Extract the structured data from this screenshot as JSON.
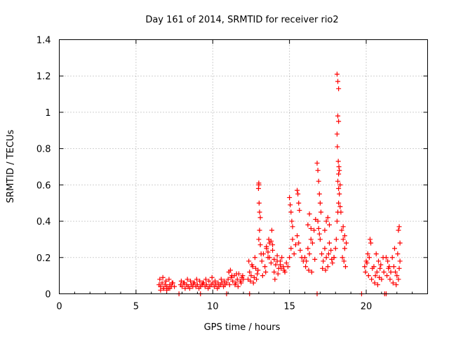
{
  "chart_data": {
    "type": "scatter",
    "title": "Day 161 of 2014, SRMTID for receiver rio2",
    "xlabel": "GPS time / hours",
    "ylabel": "SRMTID / TECUs",
    "xlim": [
      0,
      24
    ],
    "ylim": [
      0,
      1.4
    ],
    "xticks": [
      0,
      5,
      10,
      15,
      20
    ],
    "yticks": [
      0,
      0.2,
      0.4,
      0.6,
      0.8,
      1,
      1.2,
      1.4
    ],
    "xtick_labels": [
      "0",
      "5",
      "10",
      "15",
      "20"
    ],
    "ytick_labels": [
      "0",
      "0.2",
      "0.4",
      "0.6",
      "0.8",
      "1",
      "1.2",
      "1.4"
    ],
    "grid": true,
    "marker": "+",
    "series": [
      {
        "name": "SRMTID",
        "color": "#ff0000",
        "x": [
          6.5,
          6.6,
          6.7,
          6.8,
          6.9,
          7.0,
          7.1,
          7.2,
          7.3,
          7.4,
          7.5,
          6.55,
          6.75,
          6.95,
          7.15,
          7.35,
          6.6,
          6.8,
          7.0,
          7.2,
          7.9,
          8.0,
          8.1,
          8.2,
          8.3,
          8.4,
          8.5,
          8.6,
          8.7,
          8.8,
          8.9,
          9.0,
          9.1,
          9.2,
          9.3,
          9.4,
          9.5,
          9.6,
          9.7,
          9.8,
          9.9,
          10.0,
          10.1,
          10.2,
          10.3,
          10.4,
          10.5,
          10.6,
          10.7,
          10.8,
          7.95,
          8.15,
          8.35,
          8.55,
          8.75,
          8.95,
          9.15,
          9.35,
          9.55,
          9.75,
          9.95,
          10.15,
          10.35,
          10.55,
          10.75,
          10.9,
          11.0,
          11.1,
          11.2,
          11.3,
          11.4,
          11.5,
          11.6,
          11.7,
          11.8,
          11.9,
          12.0,
          11.05,
          11.25,
          11.45,
          11.65,
          11.85,
          11.15,
          11.55,
          11.95,
          12.3,
          12.4,
          12.5,
          12.6,
          12.7,
          12.8,
          12.9,
          12.35,
          12.55,
          12.75,
          12.95,
          12.45,
          12.65,
          12.85,
          13.0,
          13.0,
          12.98,
          13.02,
          13.05,
          13.1,
          13.05,
          13.0,
          13.1,
          13.15,
          13.2,
          13.3,
          13.4,
          13.5,
          13.6,
          13.7,
          13.8,
          13.9,
          14.0,
          14.1,
          14.2,
          14.3,
          14.4,
          14.5,
          14.6,
          14.7,
          14.8,
          13.25,
          13.45,
          13.65,
          13.85,
          14.05,
          14.25,
          14.45,
          14.65,
          13.5,
          13.6,
          13.7,
          13.8,
          13.9,
          14.0,
          14.2,
          14.4,
          14.9,
          15.0,
          15.1,
          15.2,
          15.3,
          15.4,
          15.5,
          15.6,
          15.7,
          15.8,
          15.9,
          15.0,
          15.05,
          15.1,
          15.15,
          15.2,
          15.5,
          15.55,
          15.6,
          15.65,
          16.0,
          16.1,
          16.2,
          16.3,
          16.4,
          16.5,
          16.6,
          16.7,
          16.05,
          16.25,
          16.45,
          16.65,
          16.2,
          16.3,
          16.4,
          16.8,
          16.85,
          16.9,
          16.95,
          17.0,
          17.05,
          16.85,
          16.9,
          16.95,
          17.0,
          17.1,
          17.2,
          17.3,
          17.4,
          17.5,
          17.6,
          17.7,
          17.8,
          17.9,
          17.15,
          17.35,
          17.55,
          17.75,
          17.3,
          17.4,
          17.5,
          17.6,
          17.9,
          18.0,
          18.05,
          18.1,
          18.15,
          18.2,
          18.25,
          18.3,
          18.1,
          18.15,
          18.2,
          18.15,
          18.2,
          18.1,
          18.12,
          18.18,
          18.22,
          18.25,
          18.2,
          18.15,
          18.2,
          18.3,
          18.35,
          18.4,
          18.5,
          18.6,
          18.7,
          18.45,
          18.55,
          18.65,
          18.5,
          18.6,
          19.9,
          20.0,
          20.1,
          20.2,
          20.3,
          20.4,
          19.95,
          20.15,
          20.35,
          20.05,
          20.25,
          20.5,
          20.6,
          20.7,
          20.8,
          20.9,
          21.0,
          21.1,
          20.55,
          20.75,
          20.95,
          21.15,
          20.65,
          20.85,
          21.3,
          21.4,
          21.5,
          21.6,
          21.35,
          21.55,
          21.45,
          21.7,
          21.8,
          21.9,
          22.0,
          22.1,
          22.2,
          21.75,
          21.95,
          22.15,
          21.85,
          22.05,
          22.1,
          22.15,
          22.2,
          7.8,
          9.2,
          10.9,
          12.4,
          16.8,
          19.7,
          21.2,
          21.3
        ],
        "y": [
          0.05,
          0.04,
          0.06,
          0.03,
          0.05,
          0.04,
          0.03,
          0.05,
          0.04,
          0.06,
          0.04,
          0.08,
          0.09,
          0.07,
          0.08,
          0.06,
          0.02,
          0.03,
          0.02,
          0.03,
          0.05,
          0.04,
          0.06,
          0.03,
          0.05,
          0.04,
          0.03,
          0.05,
          0.04,
          0.06,
          0.04,
          0.05,
          0.03,
          0.04,
          0.05,
          0.06,
          0.04,
          0.05,
          0.03,
          0.04,
          0.05,
          0.06,
          0.04,
          0.05,
          0.03,
          0.04,
          0.05,
          0.06,
          0.04,
          0.05,
          0.07,
          0.06,
          0.08,
          0.07,
          0.06,
          0.08,
          0.07,
          0.06,
          0.08,
          0.07,
          0.09,
          0.07,
          0.06,
          0.08,
          0.07,
          0.06,
          0.08,
          0.05,
          0.09,
          0.07,
          0.1,
          0.06,
          0.08,
          0.11,
          0.07,
          0.09,
          0.08,
          0.12,
          0.1,
          0.05,
          0.04,
          0.06,
          0.13,
          0.11,
          0.1,
          0.08,
          0.12,
          0.1,
          0.15,
          0.09,
          0.14,
          0.11,
          0.18,
          0.16,
          0.2,
          0.13,
          0.07,
          0.06,
          0.08,
          0.61,
          0.6,
          0.58,
          0.5,
          0.45,
          0.42,
          0.35,
          0.3,
          0.27,
          0.22,
          0.18,
          0.22,
          0.15,
          0.25,
          0.2,
          0.28,
          0.17,
          0.24,
          0.19,
          0.16,
          0.21,
          0.14,
          0.18,
          0.2,
          0.15,
          0.12,
          0.17,
          0.1,
          0.12,
          0.3,
          0.35,
          0.08,
          0.11,
          0.14,
          0.13,
          0.26,
          0.23,
          0.2,
          0.29,
          0.27,
          0.12,
          0.18,
          0.16,
          0.15,
          0.2,
          0.25,
          0.3,
          0.22,
          0.27,
          0.32,
          0.28,
          0.24,
          0.2,
          0.18,
          0.53,
          0.49,
          0.45,
          0.4,
          0.37,
          0.57,
          0.55,
          0.5,
          0.46,
          0.2,
          0.18,
          0.25,
          0.22,
          0.3,
          0.28,
          0.35,
          0.41,
          0.15,
          0.13,
          0.12,
          0.19,
          0.38,
          0.44,
          0.36,
          0.72,
          0.68,
          0.62,
          0.55,
          0.5,
          0.45,
          0.4,
          0.36,
          0.33,
          0.3,
          0.22,
          0.18,
          0.25,
          0.2,
          0.15,
          0.28,
          0.24,
          0.17,
          0.2,
          0.14,
          0.13,
          0.22,
          0.19,
          0.35,
          0.4,
          0.42,
          0.38,
          0.2,
          0.25,
          0.3,
          0.4,
          0.45,
          0.5,
          0.55,
          0.6,
          1.21,
          1.17,
          1.13,
          0.98,
          0.95,
          0.88,
          0.81,
          0.73,
          0.7,
          0.68,
          0.66,
          0.62,
          0.58,
          0.48,
          0.45,
          0.35,
          0.3,
          0.25,
          0.28,
          0.2,
          0.18,
          0.15,
          0.37,
          0.32,
          0.15,
          0.18,
          0.22,
          0.2,
          0.28,
          0.14,
          0.12,
          0.1,
          0.08,
          0.17,
          0.3,
          0.15,
          0.1,
          0.12,
          0.18,
          0.14,
          0.08,
          0.2,
          0.06,
          0.05,
          0.16,
          0.12,
          0.22,
          0.09,
          0.2,
          0.18,
          0.15,
          0.12,
          0.1,
          0.08,
          0.14,
          0.2,
          0.15,
          0.12,
          0.1,
          0.08,
          0.18,
          0.06,
          0.05,
          0.14,
          0.25,
          0.22,
          0.35,
          0.37,
          0.28,
          0.0,
          0.0,
          0.0,
          0.0,
          0.0,
          0.0,
          0.0,
          0.0
        ]
      }
    ]
  }
}
